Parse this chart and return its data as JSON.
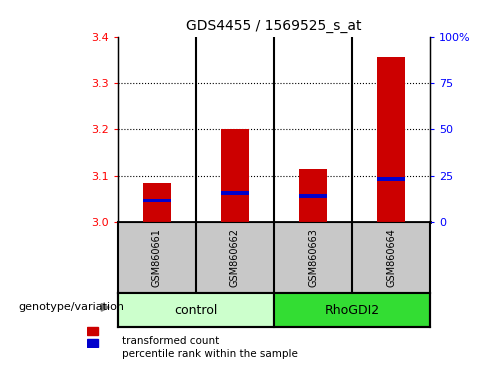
{
  "title": "GDS4455 / 1569525_s_at",
  "samples": [
    "GSM860661",
    "GSM860662",
    "GSM860663",
    "GSM860664"
  ],
  "red_values": [
    3.085,
    3.2,
    3.115,
    3.355
  ],
  "blue_values": [
    3.043,
    3.06,
    3.053,
    3.09
  ],
  "blue_bar_height": 0.008,
  "ylim_left": [
    3.0,
    3.4
  ],
  "yticks_left": [
    3.0,
    3.1,
    3.2,
    3.3,
    3.4
  ],
  "yticks_right": [
    0,
    25,
    50,
    75,
    100
  ],
  "ylim_right": [
    0,
    100
  ],
  "bar_width": 0.35,
  "bar_color_red": "#CC0000",
  "bar_color_blue": "#0000CC",
  "label_red": "transformed count",
  "label_blue": "percentile rank within the sample",
  "group_label": "genotype/variation",
  "control_label": "control",
  "rhodgi2_label": "RhoGDI2",
  "control_bg": "#CCFFCC",
  "rhodgi2_bg": "#33DD33",
  "sample_bg": "#C8C8C8",
  "plot_bg": "#FFFFFF"
}
